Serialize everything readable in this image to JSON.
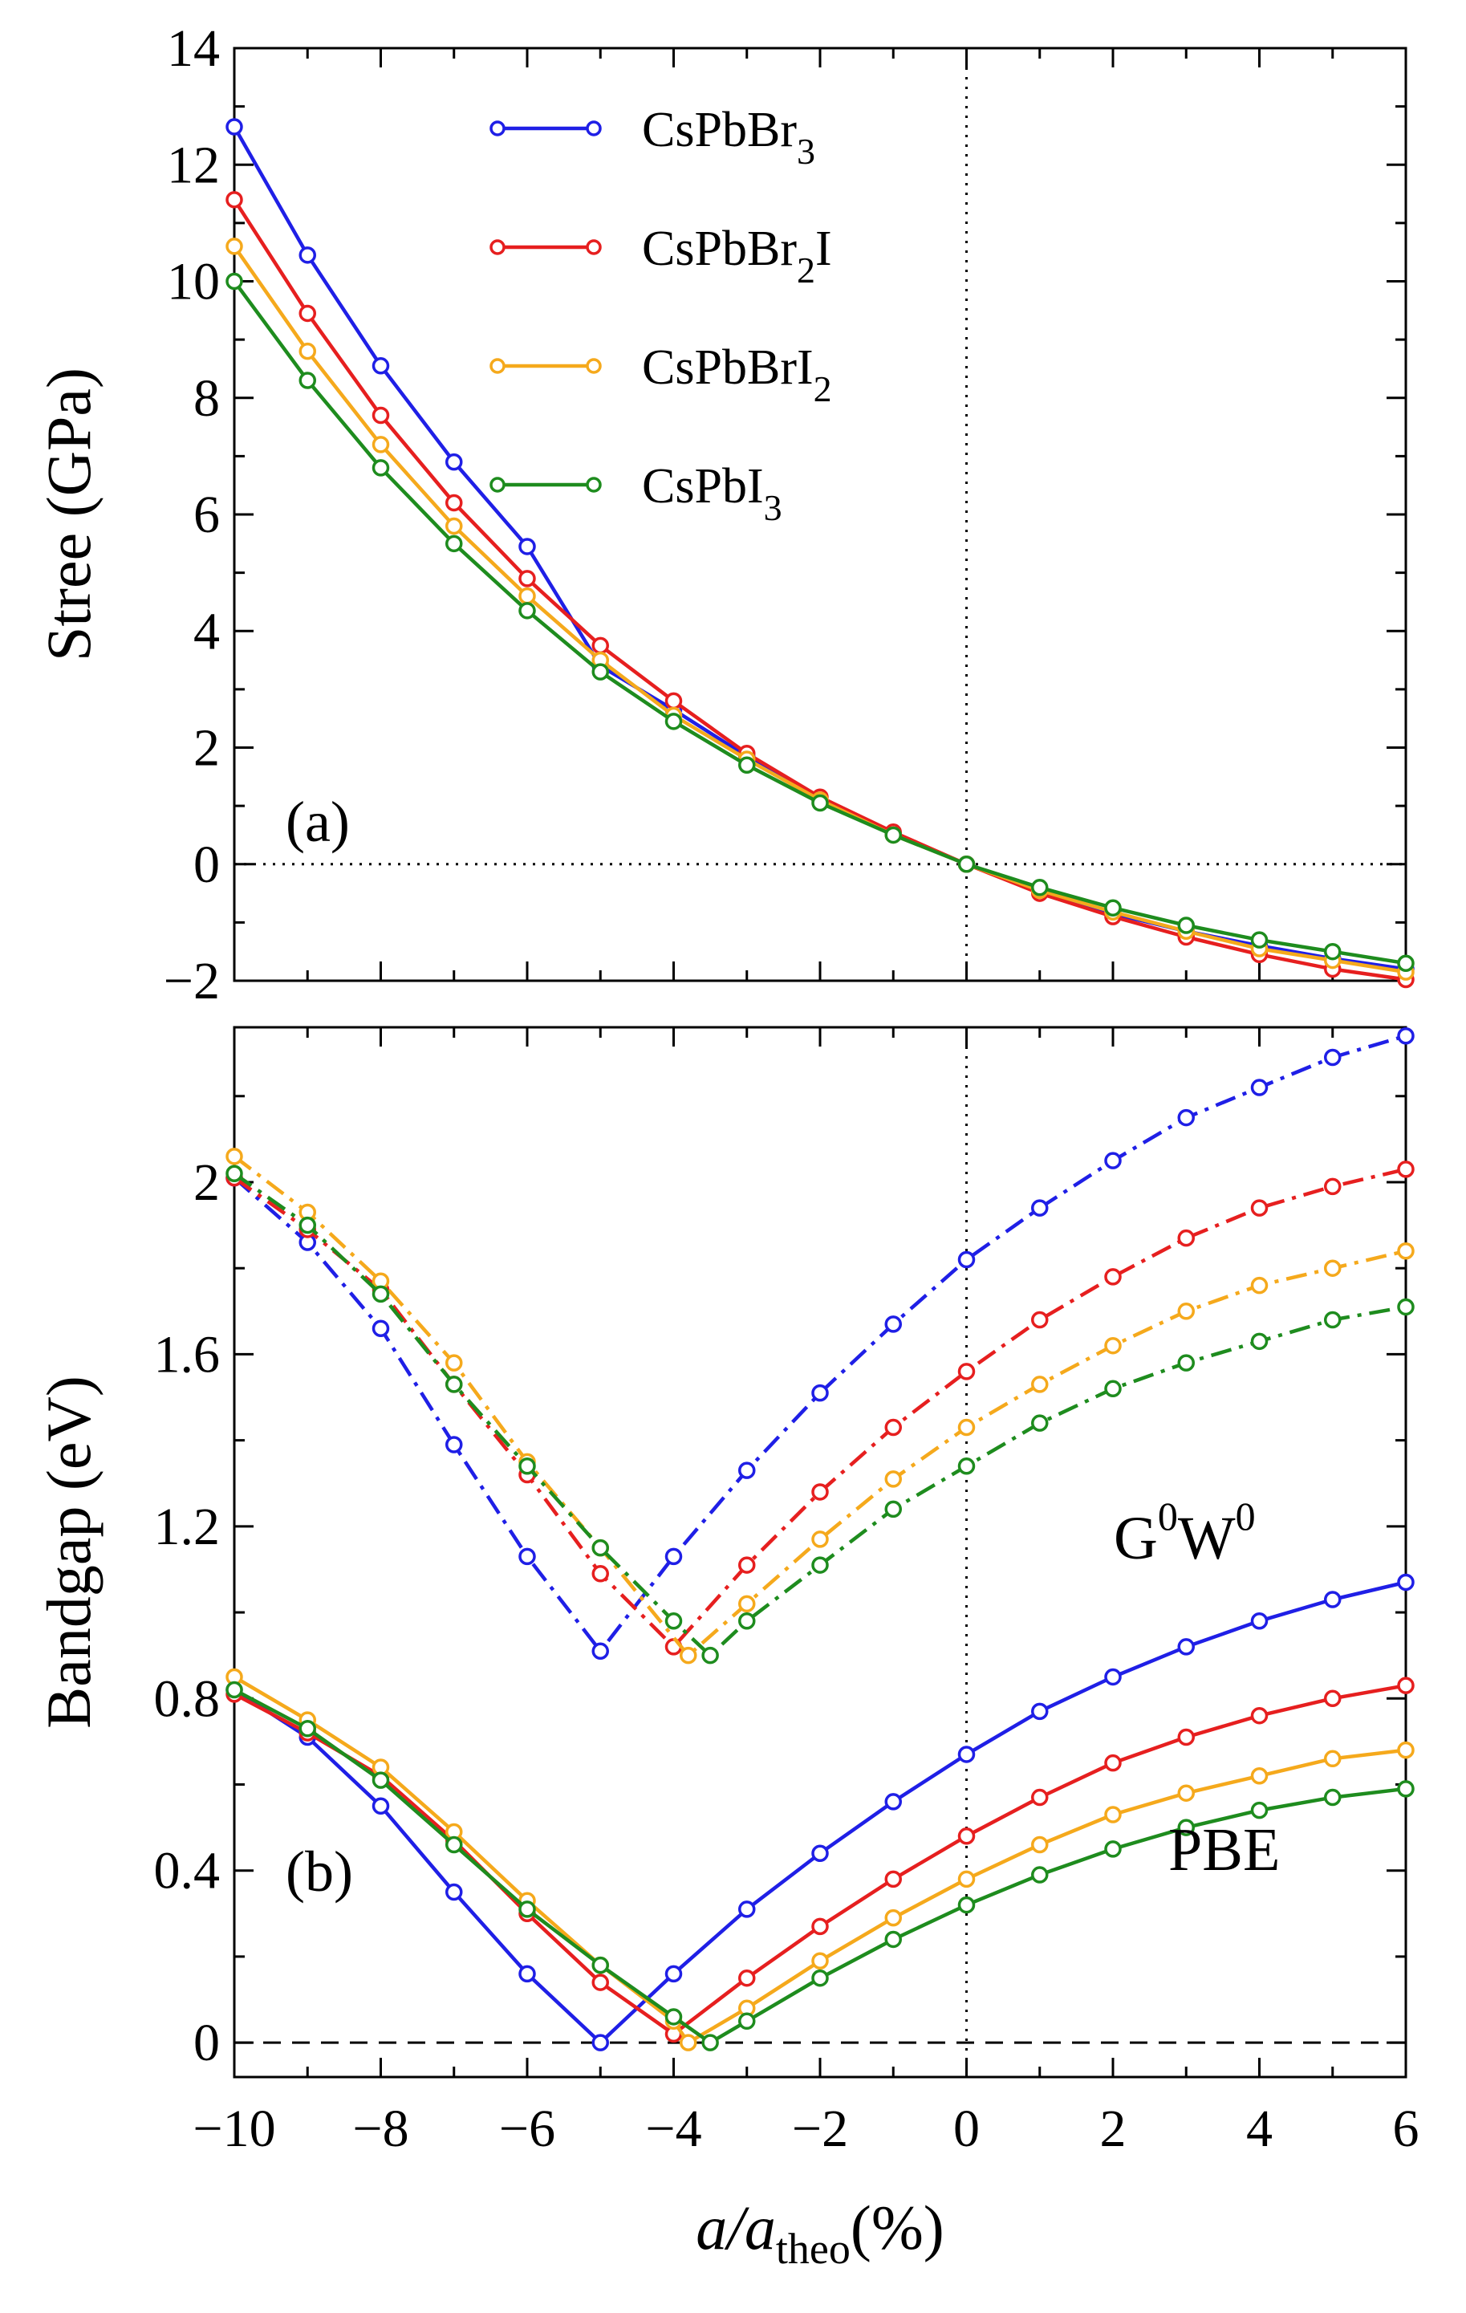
{
  "chart_data": {
    "type": "line",
    "xlabel": {
      "main": "a/a",
      "sub": "theo",
      "suffix": "(%)"
    },
    "x": [
      -10,
      -9,
      -8,
      -7,
      -6,
      -5,
      -4,
      -3,
      -2,
      -1,
      0,
      1,
      2,
      3,
      4,
      5,
      6
    ],
    "xlim": [
      -10,
      6
    ],
    "xticks": [
      -10,
      -8,
      -6,
      -4,
      -2,
      0,
      2,
      4,
      6
    ],
    "xtick_labels": [
      "−10",
      "−8",
      "−6",
      "−4",
      "−2",
      "0",
      "2",
      "4",
      "6"
    ],
    "colors": {
      "CsPbBr3": "#1f1fe6",
      "CsPbBr2I": "#e61f1f",
      "CsPbBrI2": "#f5a91c",
      "CsPbI3": "#1e8c1e"
    },
    "legend": [
      {
        "key": "CsPbBr3",
        "base": "CsPbBr",
        "sub": "3",
        "tail": ""
      },
      {
        "key": "CsPbBr2I",
        "base": "CsPbBr",
        "sub": "2",
        "tail": "I"
      },
      {
        "key": "CsPbBrI2",
        "base": "CsPbBrI",
        "sub": "2",
        "tail": ""
      },
      {
        "key": "CsPbI3",
        "base": "CsPbI",
        "sub": "3",
        "tail": ""
      }
    ],
    "panels": [
      {
        "id": "a",
        "label": "(a)",
        "ylabel": "Stree (GPa)",
        "ylim": [
          -2,
          14
        ],
        "yticks": [
          -2,
          0,
          2,
          4,
          6,
          8,
          10,
          12,
          14
        ],
        "ytick_labels": [
          "−2",
          "0",
          "2",
          "4",
          "6",
          "8",
          "10",
          "12",
          "14"
        ],
        "series": [
          {
            "key": "CsPbBr3",
            "name": "CsPbBr3",
            "style": "solid",
            "x": [
              -10,
              -9,
              -8,
              -7,
              -6,
              -5,
              -4,
              -3,
              -2,
              -1,
              0,
              1,
              2,
              3,
              4,
              5,
              6
            ],
            "y": [
              12.65,
              10.45,
              8.55,
              6.9,
              5.45,
              3.4,
              2.65,
              1.85,
              1.1,
              0.52,
              0.0,
              -0.45,
              -0.85,
              -1.15,
              -1.4,
              -1.62,
              -1.8
            ]
          },
          {
            "key": "CsPbBr2I",
            "name": "CsPbBr2I",
            "style": "solid",
            "x": [
              -10,
              -9,
              -8,
              -7,
              -6,
              -5,
              -4,
              -3,
              -2,
              -1,
              0,
              1,
              2,
              3,
              4,
              5,
              6
            ],
            "y": [
              11.4,
              9.45,
              7.7,
              6.2,
              4.9,
              3.75,
              2.8,
              1.9,
              1.15,
              0.55,
              0.0,
              -0.5,
              -0.9,
              -1.25,
              -1.55,
              -1.8,
              -1.98
            ]
          },
          {
            "key": "CsPbBrI2",
            "name": "CsPbBrI2",
            "style": "solid",
            "x": [
              -10,
              -9,
              -8,
              -7,
              -6,
              -5,
              -4,
              -3,
              -2,
              -1,
              0,
              1,
              2,
              3,
              4,
              5,
              6
            ],
            "y": [
              10.6,
              8.8,
              7.2,
              5.8,
              4.6,
              3.5,
              2.55,
              1.8,
              1.1,
              0.5,
              0.0,
              -0.45,
              -0.82,
              -1.15,
              -1.45,
              -1.65,
              -1.85
            ]
          },
          {
            "key": "CsPbI3",
            "name": "CsPbI3",
            "style": "solid",
            "x": [
              -10,
              -9,
              -8,
              -7,
              -6,
              -5,
              -4,
              -3,
              -2,
              -1,
              0,
              1,
              2,
              3,
              4,
              5,
              6
            ],
            "y": [
              10.0,
              8.3,
              6.8,
              5.5,
              4.35,
              3.3,
              2.45,
              1.7,
              1.05,
              0.5,
              0.0,
              -0.4,
              -0.75,
              -1.05,
              -1.3,
              -1.5,
              -1.7
            ]
          }
        ]
      },
      {
        "id": "b",
        "label": "(b)",
        "ylabel": "Bandgap (eV)",
        "ylim": [
          -0.08,
          2.36
        ],
        "yticks": [
          0,
          0.4,
          0.8,
          1.2,
          1.6,
          2.0
        ],
        "ytick_labels": [
          "0",
          "0.4",
          "0.8",
          "1.2",
          "1.6",
          "2"
        ],
        "method_labels": {
          "gw": {
            "base": "G",
            "sup1": "0",
            "mid": "W",
            "sup2": "0"
          },
          "pbe": "PBE"
        },
        "series": [
          {
            "key": "CsPbBr3",
            "name": "CsPbBr3 G0W0",
            "style": "dashdot",
            "x": [
              -10,
              -9,
              -8,
              -7,
              -6,
              -5,
              -4,
              -3,
              -2,
              -1,
              0,
              1,
              2,
              3,
              4,
              5,
              6
            ],
            "y": [
              2.01,
              1.86,
              1.66,
              1.39,
              1.13,
              0.91,
              1.13,
              1.33,
              1.51,
              1.67,
              1.82,
              1.94,
              2.05,
              2.15,
              2.22,
              2.29,
              2.34
            ]
          },
          {
            "key": "CsPbBr2I",
            "name": "CsPbBr2I G0W0",
            "style": "dashdot",
            "x": [
              -10,
              -9,
              -8,
              -7,
              -6,
              -5,
              -4,
              -3,
              -2,
              -1,
              0,
              1,
              2,
              3,
              4,
              5,
              6
            ],
            "y": [
              2.01,
              1.89,
              1.75,
              1.53,
              1.32,
              1.09,
              0.92,
              1.11,
              1.28,
              1.43,
              1.56,
              1.68,
              1.78,
              1.87,
              1.94,
              1.99,
              2.03
            ]
          },
          {
            "key": "CsPbBrI2",
            "name": "CsPbBrI2 G0W0",
            "style": "dashdot",
            "x": [
              -10,
              -9,
              -8,
              -7,
              -6,
              -5,
              -3.8,
              -3,
              -2,
              -1,
              0,
              1,
              2,
              3,
              4,
              5,
              6
            ],
            "y": [
              2.06,
              1.93,
              1.77,
              1.58,
              1.35,
              1.15,
              0.9,
              1.02,
              1.17,
              1.31,
              1.43,
              1.53,
              1.62,
              1.7,
              1.76,
              1.8,
              1.84
            ]
          },
          {
            "key": "CsPbI3",
            "name": "CsPbI3 G0W0",
            "style": "dashdot",
            "x": [
              -10,
              -9,
              -8,
              -7,
              -6,
              -5,
              -4,
              -3.5,
              -3,
              -2,
              -1,
              0,
              1,
              2,
              3,
              4,
              5,
              6
            ],
            "y": [
              2.02,
              1.9,
              1.74,
              1.53,
              1.34,
              1.15,
              0.98,
              0.9,
              0.98,
              1.11,
              1.24,
              1.34,
              1.44,
              1.52,
              1.58,
              1.63,
              1.68,
              1.71
            ]
          },
          {
            "key": "CsPbBr3",
            "name": "CsPbBr3 PBE",
            "style": "solid",
            "x": [
              -10,
              -9,
              -8,
              -7,
              -6,
              -5,
              -4,
              -3,
              -2,
              -1,
              0,
              1,
              2,
              3,
              4,
              5,
              6
            ],
            "y": [
              0.82,
              0.71,
              0.55,
              0.35,
              0.16,
              0.0,
              0.16,
              0.31,
              0.44,
              0.56,
              0.67,
              0.77,
              0.85,
              0.92,
              0.98,
              1.03,
              1.07
            ]
          },
          {
            "key": "CsPbBr2I",
            "name": "CsPbBr2I PBE",
            "style": "solid",
            "x": [
              -10,
              -9,
              -8,
              -7,
              -6,
              -5,
              -4,
              -3,
              -2,
              -1,
              0,
              1,
              2,
              3,
              4,
              5,
              6
            ],
            "y": [
              0.81,
              0.72,
              0.62,
              0.47,
              0.3,
              0.14,
              0.02,
              0.15,
              0.27,
              0.38,
              0.48,
              0.57,
              0.65,
              0.71,
              0.76,
              0.8,
              0.83
            ]
          },
          {
            "key": "CsPbBrI2",
            "name": "CsPbBrI2 PBE",
            "style": "solid",
            "x": [
              -10,
              -9,
              -8,
              -7,
              -6,
              -5,
              -4,
              -3.8,
              -3,
              -2,
              -1,
              0,
              1,
              2,
              3,
              4,
              5,
              6
            ],
            "y": [
              0.85,
              0.75,
              0.64,
              0.49,
              0.33,
              0.18,
              0.05,
              0.0,
              0.08,
              0.19,
              0.29,
              0.38,
              0.46,
              0.53,
              0.58,
              0.62,
              0.66,
              0.68
            ]
          },
          {
            "key": "CsPbI3",
            "name": "CsPbI3 PBE",
            "style": "solid",
            "x": [
              -10,
              -9,
              -8,
              -7,
              -6,
              -5,
              -4,
              -3.5,
              -3,
              -2,
              -1,
              0,
              1,
              2,
              3,
              4,
              5,
              6
            ],
            "y": [
              0.82,
              0.73,
              0.61,
              0.46,
              0.31,
              0.18,
              0.06,
              0.0,
              0.05,
              0.15,
              0.24,
              0.32,
              0.39,
              0.45,
              0.5,
              0.54,
              0.57,
              0.59
            ]
          }
        ]
      }
    ]
  }
}
